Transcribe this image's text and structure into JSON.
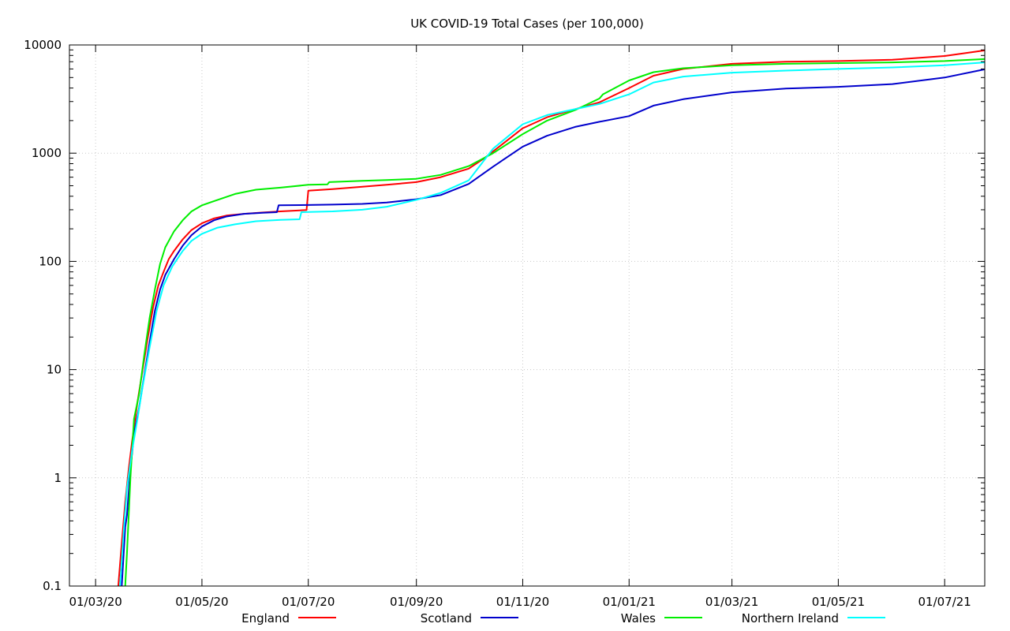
{
  "chart_data": {
    "type": "line",
    "title": "UK COVID-19 Total Cases (per 100,000)",
    "xlabel": "",
    "ylabel": "",
    "y_scale": "log",
    "ylim": [
      0.1,
      10000
    ],
    "xlim": [
      "2020-02-15",
      "2021-07-24"
    ],
    "y_ticks": [
      {
        "value": 0.1,
        "label": "0.1"
      },
      {
        "value": 1,
        "label": "1"
      },
      {
        "value": 10,
        "label": "10"
      },
      {
        "value": 100,
        "label": "100"
      },
      {
        "value": 1000,
        "label": "1000"
      },
      {
        "value": 10000,
        "label": "10000"
      }
    ],
    "x_ticks": [
      {
        "date": "2020-03-01",
        "label": "01/03/20"
      },
      {
        "date": "2020-05-01",
        "label": "01/05/20"
      },
      {
        "date": "2020-07-01",
        "label": "01/07/20"
      },
      {
        "date": "2020-09-01",
        "label": "01/09/20"
      },
      {
        "date": "2020-11-01",
        "label": "01/11/20"
      },
      {
        "date": "2021-01-01",
        "label": "01/01/21"
      },
      {
        "date": "2021-03-01",
        "label": "01/03/21"
      },
      {
        "date": "2021-05-01",
        "label": "01/05/21"
      },
      {
        "date": "2021-07-01",
        "label": "01/07/21"
      }
    ],
    "grid": true,
    "legend_position": "bottom",
    "series": [
      {
        "name": "England",
        "color": "#ff0000",
        "points": [
          [
            "2020-03-14",
            0.1
          ],
          [
            "2020-03-16",
            0.25
          ],
          [
            "2020-03-18",
            0.6
          ],
          [
            "2020-03-20",
            1.2
          ],
          [
            "2020-03-22",
            2.2
          ],
          [
            "2020-03-25",
            5
          ],
          [
            "2020-03-28",
            10
          ],
          [
            "2020-03-31",
            20
          ],
          [
            "2020-04-03",
            38
          ],
          [
            "2020-04-06",
            60
          ],
          [
            "2020-04-09",
            80
          ],
          [
            "2020-04-12",
            105
          ],
          [
            "2020-04-15",
            125
          ],
          [
            "2020-04-20",
            160
          ],
          [
            "2020-04-25",
            195
          ],
          [
            "2020-05-01",
            225
          ],
          [
            "2020-05-08",
            250
          ],
          [
            "2020-05-15",
            265
          ],
          [
            "2020-05-25",
            275
          ],
          [
            "2020-06-05",
            283
          ],
          [
            "2020-06-15",
            290
          ],
          [
            "2020-06-30",
            298
          ],
          [
            "2020-07-01",
            450
          ],
          [
            "2020-07-15",
            465
          ],
          [
            "2020-08-01",
            490
          ],
          [
            "2020-08-15",
            510
          ],
          [
            "2020-09-01",
            540
          ],
          [
            "2020-09-15",
            600
          ],
          [
            "2020-10-01",
            720
          ],
          [
            "2020-10-10",
            900
          ],
          [
            "2020-10-20",
            1200
          ],
          [
            "2020-11-01",
            1700
          ],
          [
            "2020-11-15",
            2150
          ],
          [
            "2020-12-01",
            2550
          ],
          [
            "2020-12-15",
            2950
          ],
          [
            "2021-01-01",
            4000
          ],
          [
            "2021-01-15",
            5200
          ],
          [
            "2021-02-01",
            6000
          ],
          [
            "2021-03-01",
            6700
          ],
          [
            "2021-04-01",
            7000
          ],
          [
            "2021-05-01",
            7100
          ],
          [
            "2021-06-01",
            7300
          ],
          [
            "2021-07-01",
            7900
          ],
          [
            "2021-07-24",
            8900
          ]
        ]
      },
      {
        "name": "Scotland",
        "color": "#0000cc",
        "points": [
          [
            "2020-03-16",
            0.1
          ],
          [
            "2020-03-18",
            0.35
          ],
          [
            "2020-03-19",
            0.45
          ],
          [
            "2020-03-21",
            1.2
          ],
          [
            "2020-03-23",
            2.5
          ],
          [
            "2020-03-26",
            4.5
          ],
          [
            "2020-03-29",
            9
          ],
          [
            "2020-04-01",
            18
          ],
          [
            "2020-04-04",
            35
          ],
          [
            "2020-04-07",
            55
          ],
          [
            "2020-04-10",
            75
          ],
          [
            "2020-04-15",
            105
          ],
          [
            "2020-04-20",
            140
          ],
          [
            "2020-04-25",
            175
          ],
          [
            "2020-05-01",
            210
          ],
          [
            "2020-05-08",
            240
          ],
          [
            "2020-05-15",
            260
          ],
          [
            "2020-05-25",
            275
          ],
          [
            "2020-06-05",
            281
          ],
          [
            "2020-06-13",
            285
          ],
          [
            "2020-06-14",
            330
          ],
          [
            "2020-07-01",
            332
          ],
          [
            "2020-07-15",
            335
          ],
          [
            "2020-08-01",
            340
          ],
          [
            "2020-08-15",
            350
          ],
          [
            "2020-09-01",
            375
          ],
          [
            "2020-09-15",
            410
          ],
          [
            "2020-10-01",
            520
          ],
          [
            "2020-10-15",
            750
          ],
          [
            "2020-11-01",
            1150
          ],
          [
            "2020-11-15",
            1450
          ],
          [
            "2020-12-01",
            1750
          ],
          [
            "2020-12-15",
            1950
          ],
          [
            "2021-01-01",
            2200
          ],
          [
            "2021-01-15",
            2750
          ],
          [
            "2021-02-01",
            3150
          ],
          [
            "2021-03-01",
            3650
          ],
          [
            "2021-04-01",
            3950
          ],
          [
            "2021-05-01",
            4100
          ],
          [
            "2021-06-01",
            4350
          ],
          [
            "2021-07-01",
            5000
          ],
          [
            "2021-07-24",
            5950
          ]
        ]
      },
      {
        "name": "Wales",
        "color": "#00ee00",
        "points": [
          [
            "2020-03-18",
            0.1
          ],
          [
            "2020-03-19",
            0.2
          ],
          [
            "2020-03-21",
            1
          ],
          [
            "2020-03-23",
            3.5
          ],
          [
            "2020-03-26",
            6
          ],
          [
            "2020-03-29",
            14
          ],
          [
            "2020-04-01",
            30
          ],
          [
            "2020-04-04",
            55
          ],
          [
            "2020-04-07",
            95
          ],
          [
            "2020-04-10",
            135
          ],
          [
            "2020-04-15",
            190
          ],
          [
            "2020-04-20",
            240
          ],
          [
            "2020-04-25",
            290
          ],
          [
            "2020-05-01",
            330
          ],
          [
            "2020-05-10",
            370
          ],
          [
            "2020-05-20",
            420
          ],
          [
            "2020-06-01",
            460
          ],
          [
            "2020-06-15",
            480
          ],
          [
            "2020-07-01",
            510
          ],
          [
            "2020-07-12",
            515
          ],
          [
            "2020-07-13",
            540
          ],
          [
            "2020-08-01",
            555
          ],
          [
            "2020-08-15",
            565
          ],
          [
            "2020-09-01",
            580
          ],
          [
            "2020-09-15",
            630
          ],
          [
            "2020-10-01",
            760
          ],
          [
            "2020-10-15",
            1000
          ],
          [
            "2020-11-01",
            1500
          ],
          [
            "2020-11-15",
            2000
          ],
          [
            "2020-12-01",
            2500
          ],
          [
            "2020-12-15",
            3200
          ],
          [
            "2020-12-17",
            3500
          ],
          [
            "2021-01-01",
            4700
          ],
          [
            "2021-01-15",
            5600
          ],
          [
            "2021-02-01",
            6100
          ],
          [
            "2021-03-01",
            6500
          ],
          [
            "2021-04-01",
            6700
          ],
          [
            "2021-05-01",
            6800
          ],
          [
            "2021-06-01",
            6900
          ],
          [
            "2021-07-01",
            7100
          ],
          [
            "2021-07-24",
            7400
          ]
        ]
      },
      {
        "name": "Northern Ireland",
        "color": "#00ffff",
        "points": [
          [
            "2020-03-15",
            0.1
          ],
          [
            "2020-03-17",
            0.3
          ],
          [
            "2020-03-19",
            0.8
          ],
          [
            "2020-03-22",
            1.8
          ],
          [
            "2020-03-25",
            3.5
          ],
          [
            "2020-03-28",
            7
          ],
          [
            "2020-04-01",
            16
          ],
          [
            "2020-04-05",
            35
          ],
          [
            "2020-04-09",
            60
          ],
          [
            "2020-04-14",
            90
          ],
          [
            "2020-04-20",
            125
          ],
          [
            "2020-04-25",
            155
          ],
          [
            "2020-05-01",
            180
          ],
          [
            "2020-05-10",
            205
          ],
          [
            "2020-05-20",
            220
          ],
          [
            "2020-06-01",
            235
          ],
          [
            "2020-06-15",
            242
          ],
          [
            "2020-06-26",
            245
          ],
          [
            "2020-06-27",
            285
          ],
          [
            "2020-07-15",
            290
          ],
          [
            "2020-08-01",
            300
          ],
          [
            "2020-08-15",
            320
          ],
          [
            "2020-09-01",
            370
          ],
          [
            "2020-09-15",
            430
          ],
          [
            "2020-10-01",
            560
          ],
          [
            "2020-10-15",
            1100
          ],
          [
            "2020-11-01",
            1850
          ],
          [
            "2020-11-15",
            2250
          ],
          [
            "2020-12-01",
            2550
          ],
          [
            "2020-12-15",
            2850
          ],
          [
            "2021-01-01",
            3500
          ],
          [
            "2021-01-15",
            4500
          ],
          [
            "2021-02-01",
            5100
          ],
          [
            "2021-03-01",
            5550
          ],
          [
            "2021-04-01",
            5800
          ],
          [
            "2021-05-01",
            6000
          ],
          [
            "2021-06-01",
            6200
          ],
          [
            "2021-07-01",
            6500
          ],
          [
            "2021-07-24",
            6900
          ]
        ]
      }
    ]
  }
}
